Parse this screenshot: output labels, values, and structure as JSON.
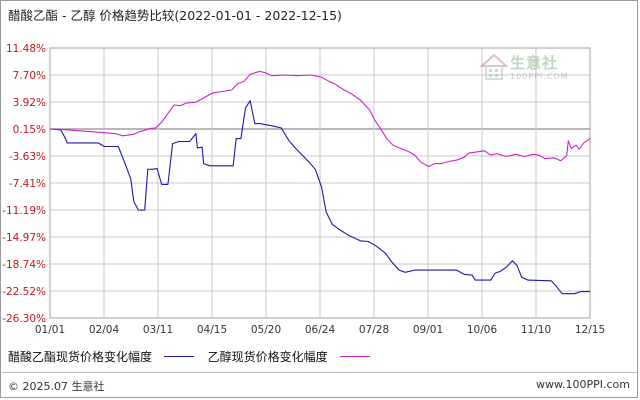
{
  "title": "醋酸乙酯 - 乙醇 价格趋势比较(2022-01-01 - 2022-12-15)",
  "watermark": {
    "text": "生意社",
    "sub": "100PPI.COM"
  },
  "footer": {
    "left": "© 2025.07 生意社",
    "right": "www.100PPI.com"
  },
  "colors": {
    "series1": "#1a1aa6",
    "series2": "#cc22cc",
    "grid": "#c8c8c8",
    "zero_line": "#8c8c8c"
  },
  "chart_data": {
    "type": "line",
    "title": "醋酸乙酯 - 乙醇 价格趋势比较(2022-01-01 - 2022-12-15)",
    "xlabel": "",
    "ylabel": "",
    "x_ticks": [
      "01/01",
      "02/04",
      "03/11",
      "04/15",
      "05/20",
      "06/24",
      "07/28",
      "09/01",
      "10/06",
      "11/10",
      "12/15"
    ],
    "y_ticks": [
      "11.48%",
      "7.70%",
      "3.92%",
      "0.15%",
      "-3.63%",
      "-7.41%",
      "-11.19%",
      "-14.97%",
      "-18.74%",
      "-22.52%",
      "-26.30%"
    ],
    "ylim": [
      -26.3,
      11.48
    ],
    "xlim": [
      "2022-01-01",
      "2022-12-15"
    ],
    "grid": true,
    "legend_position": "bottom",
    "series": [
      {
        "name": "醋酸乙酯现货价格变化幅度",
        "color": "#1a1aa6",
        "points": [
          [
            "2022-01-01",
            0.15
          ],
          [
            "2022-01-08",
            0.0
          ],
          [
            "2022-01-11",
            -1.2
          ],
          [
            "2022-01-12",
            -1.8
          ],
          [
            "2022-02-01",
            -1.8
          ],
          [
            "2022-02-05",
            -2.3
          ],
          [
            "2022-02-14",
            -2.3
          ],
          [
            "2022-02-18",
            -4.5
          ],
          [
            "2022-02-22",
            -6.8
          ],
          [
            "2022-02-24",
            -10.0
          ],
          [
            "2022-02-27",
            -11.2
          ],
          [
            "2022-03-03",
            -11.2
          ],
          [
            "2022-03-05",
            -5.5
          ],
          [
            "2022-03-08",
            -5.5
          ],
          [
            "2022-03-11",
            -5.4
          ],
          [
            "2022-03-14",
            -7.6
          ],
          [
            "2022-03-18",
            -7.6
          ],
          [
            "2022-03-21",
            -1.9
          ],
          [
            "2022-03-25",
            -1.6
          ],
          [
            "2022-04-01",
            -1.6
          ],
          [
            "2022-04-05",
            -0.5
          ],
          [
            "2022-04-06",
            -2.5
          ],
          [
            "2022-04-09",
            -2.4
          ],
          [
            "2022-04-10",
            -4.7
          ],
          [
            "2022-04-14",
            -5.0
          ],
          [
            "2022-04-29",
            -5.0
          ],
          [
            "2022-05-01",
            -1.2
          ],
          [
            "2022-05-04",
            -1.2
          ],
          [
            "2022-05-07",
            3.1
          ],
          [
            "2022-05-10",
            4.1
          ],
          [
            "2022-05-13",
            0.9
          ],
          [
            "2022-05-16",
            0.9
          ],
          [
            "2022-05-24",
            0.6
          ],
          [
            "2022-05-30",
            0.3
          ],
          [
            "2022-06-04",
            -1.5
          ],
          [
            "2022-06-08",
            -2.5
          ],
          [
            "2022-06-13",
            -3.6
          ],
          [
            "2022-06-17",
            -4.5
          ],
          [
            "2022-06-21",
            -5.5
          ],
          [
            "2022-06-25",
            -8.0
          ],
          [
            "2022-06-28",
            -11.5
          ],
          [
            "2022-07-02",
            -13.2
          ],
          [
            "2022-07-07",
            -14.0
          ],
          [
            "2022-07-13",
            -14.8
          ],
          [
            "2022-07-20",
            -15.5
          ],
          [
            "2022-07-25",
            -15.6
          ],
          [
            "2022-07-30",
            -16.2
          ],
          [
            "2022-08-05",
            -17.2
          ],
          [
            "2022-08-09",
            -18.4
          ],
          [
            "2022-08-14",
            -19.6
          ],
          [
            "2022-08-18",
            -19.9
          ],
          [
            "2022-08-24",
            -19.6
          ],
          [
            "2022-09-05",
            -19.6
          ],
          [
            "2022-09-20",
            -19.6
          ],
          [
            "2022-09-25",
            -20.2
          ],
          [
            "2022-09-30",
            -20.3
          ],
          [
            "2022-10-02",
            -21.0
          ],
          [
            "2022-10-12",
            -21.0
          ],
          [
            "2022-10-15",
            -20.0
          ],
          [
            "2022-10-18",
            -19.8
          ],
          [
            "2022-10-22",
            -19.2
          ],
          [
            "2022-10-26",
            -18.3
          ],
          [
            "2022-10-29",
            -19.0
          ],
          [
            "2022-11-01",
            -20.6
          ],
          [
            "2022-11-05",
            -21.0
          ],
          [
            "2022-11-20",
            -21.1
          ],
          [
            "2022-11-23",
            -21.8
          ],
          [
            "2022-11-27",
            -22.9
          ],
          [
            "2022-12-05",
            -22.9
          ],
          [
            "2022-12-09",
            -22.6
          ],
          [
            "2022-12-15",
            -22.6
          ]
        ]
      },
      {
        "name": "乙醇现货价格变化幅度",
        "color": "#cc22cc",
        "points": [
          [
            "2022-01-01",
            0.15
          ],
          [
            "2022-01-08",
            0.1
          ],
          [
            "2022-01-20",
            -0.1
          ],
          [
            "2022-02-01",
            -0.3
          ],
          [
            "2022-02-12",
            -0.5
          ],
          [
            "2022-02-17",
            -0.8
          ],
          [
            "2022-02-24",
            -0.6
          ],
          [
            "2022-02-28",
            -0.2
          ],
          [
            "2022-03-02",
            -0.1
          ],
          [
            "2022-03-06",
            0.2
          ],
          [
            "2022-03-10",
            0.3
          ],
          [
            "2022-03-14",
            1.1
          ],
          [
            "2022-03-18",
            2.3
          ],
          [
            "2022-03-22",
            3.5
          ],
          [
            "2022-03-26",
            3.4
          ],
          [
            "2022-03-30",
            3.8
          ],
          [
            "2022-04-05",
            3.9
          ],
          [
            "2022-04-10",
            4.5
          ],
          [
            "2022-04-16",
            5.2
          ],
          [
            "2022-04-22",
            5.4
          ],
          [
            "2022-04-28",
            5.6
          ],
          [
            "2022-05-02",
            6.5
          ],
          [
            "2022-05-06",
            6.8
          ],
          [
            "2022-05-10",
            7.8
          ],
          [
            "2022-05-16",
            8.2
          ],
          [
            "2022-05-20",
            8.0
          ],
          [
            "2022-05-24",
            7.6
          ],
          [
            "2022-06-01",
            7.7
          ],
          [
            "2022-06-10",
            7.6
          ],
          [
            "2022-06-18",
            7.7
          ],
          [
            "2022-06-25",
            7.4
          ],
          [
            "2022-06-29",
            6.9
          ],
          [
            "2022-07-04",
            6.4
          ],
          [
            "2022-07-08",
            5.8
          ],
          [
            "2022-07-14",
            5.1
          ],
          [
            "2022-07-20",
            4.2
          ],
          [
            "2022-07-26",
            2.8
          ],
          [
            "2022-07-29",
            1.5
          ],
          [
            "2022-08-02",
            0.2
          ],
          [
            "2022-08-06",
            -1.2
          ],
          [
            "2022-08-10",
            -2.1
          ],
          [
            "2022-08-14",
            -2.5
          ],
          [
            "2022-08-20",
            -3.0
          ],
          [
            "2022-08-24",
            -3.5
          ],
          [
            "2022-08-28",
            -4.5
          ],
          [
            "2022-09-02",
            -5.1
          ],
          [
            "2022-09-06",
            -4.7
          ],
          [
            "2022-09-10",
            -4.7
          ],
          [
            "2022-09-15",
            -4.4
          ],
          [
            "2022-09-20",
            -4.2
          ],
          [
            "2022-09-25",
            -3.8
          ],
          [
            "2022-09-28",
            -3.2
          ],
          [
            "2022-10-02",
            -3.1
          ],
          [
            "2022-10-08",
            -2.9
          ],
          [
            "2022-10-12",
            -3.5
          ],
          [
            "2022-10-16",
            -3.3
          ],
          [
            "2022-10-22",
            -3.7
          ],
          [
            "2022-10-28",
            -3.4
          ],
          [
            "2022-11-03",
            -3.7
          ],
          [
            "2022-11-08",
            -3.4
          ],
          [
            "2022-11-12",
            -3.5
          ],
          [
            "2022-11-16",
            -4.0
          ],
          [
            "2022-11-22",
            -3.9
          ],
          [
            "2022-11-26",
            -4.3
          ],
          [
            "2022-11-30",
            -3.6
          ],
          [
            "2022-12-01",
            -1.5
          ],
          [
            "2022-12-03",
            -2.6
          ],
          [
            "2022-12-06",
            -2.1
          ],
          [
            "2022-12-08",
            -2.7
          ],
          [
            "2022-12-11",
            -1.8
          ],
          [
            "2022-12-15",
            -1.2
          ]
        ]
      }
    ]
  }
}
